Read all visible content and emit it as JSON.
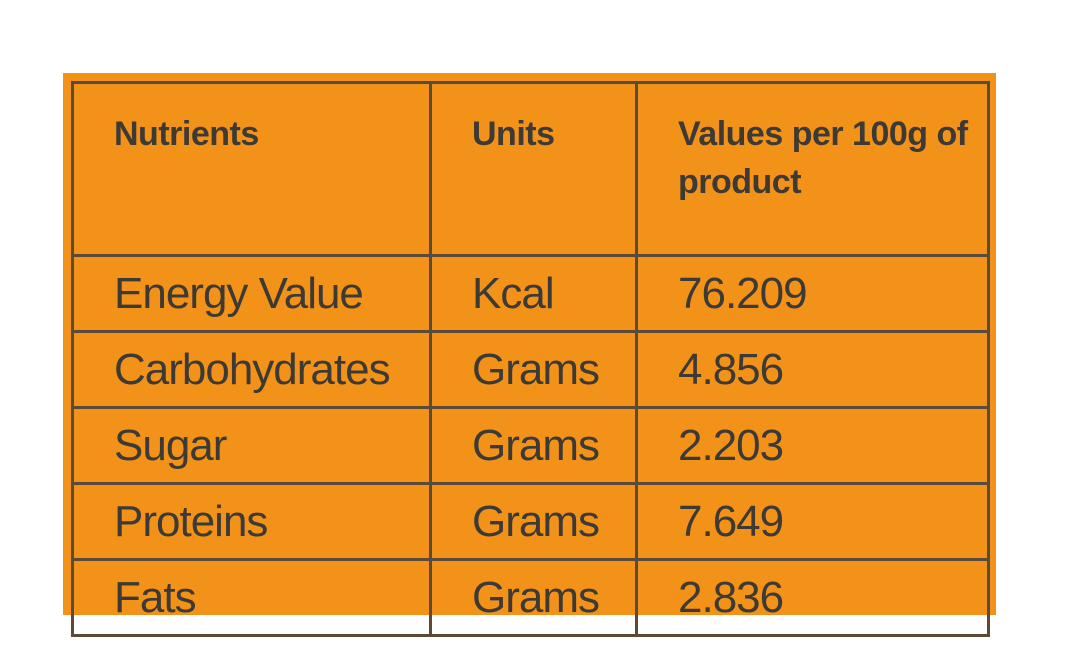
{
  "table": {
    "headers": [
      "Nutrients",
      "Units",
      "Values per 100g of product"
    ],
    "rows": [
      {
        "nutrient": "Energy Value",
        "unit": "Kcal",
        "value": "76.209"
      },
      {
        "nutrient": "Carbohydrates",
        "unit": "Grams",
        "value": "4.856"
      },
      {
        "nutrient": "Sugar",
        "unit": "Grams",
        "value": "2.203"
      },
      {
        "nutrient": "Proteins",
        "unit": "Grams",
        "value": "7.649"
      },
      {
        "nutrient": "Fats",
        "unit": "Grams",
        "value": "2.836"
      }
    ]
  },
  "colors": {
    "background": "#f39218",
    "border": "#5b4a37",
    "text": "#3d3a35"
  }
}
